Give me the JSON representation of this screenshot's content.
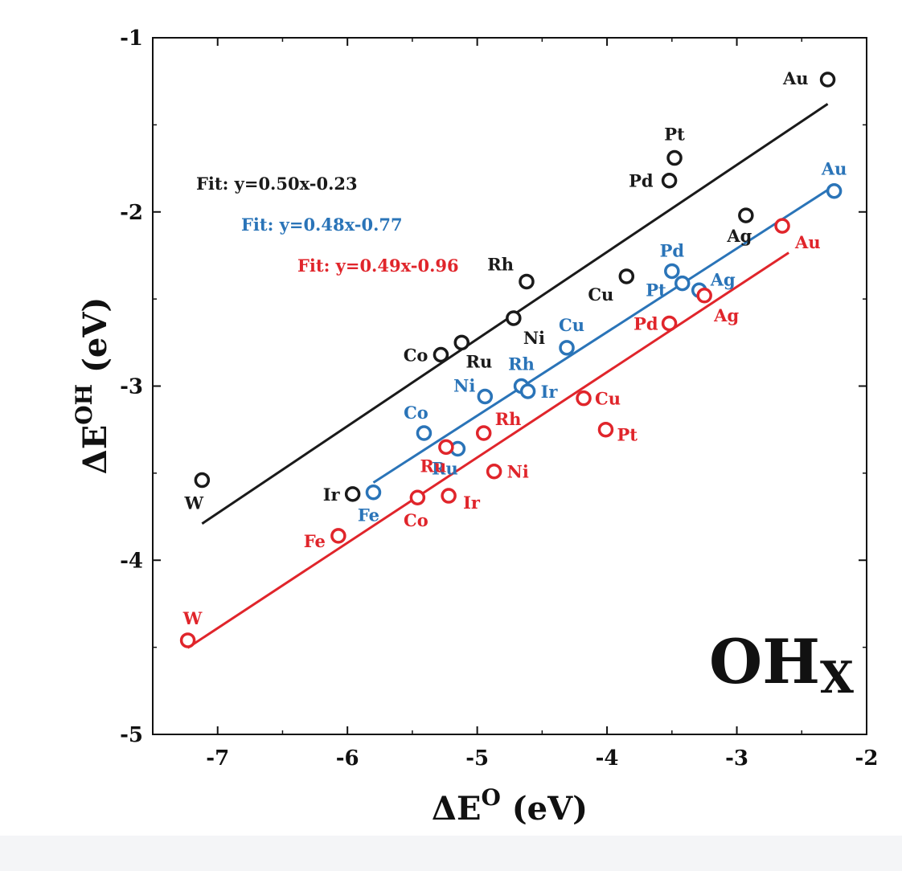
{
  "chart_data": {
    "type": "scatter",
    "xlabel": "ΔE",
    "xlabel_sup": "O",
    "xlabel_unit": " (eV)",
    "ylabel": "ΔE",
    "ylabel_sup": "OH",
    "ylabel_unit": " (eV)",
    "xlim": [
      -7.5,
      -2
    ],
    "ylim": [
      -5,
      -1
    ],
    "xticks": [
      -7,
      -6,
      -5,
      -4,
      -3,
      -2
    ],
    "yticks": [
      -1,
      -2,
      -3,
      -4,
      -5
    ],
    "grid": false,
    "annotation": {
      "main": "OH",
      "sub": "X"
    },
    "series": [
      {
        "color": "#1a1a1a",
        "fit_label": "Fit: y=0.50x-0.23",
        "fit": {
          "slope": 0.5,
          "intercept": -0.23,
          "x_range": [
            -7.12,
            -2.3
          ]
        },
        "points": [
          {
            "label": "Au",
            "x": -2.3,
            "y": -1.24
          },
          {
            "label": "Pt",
            "x": -3.48,
            "y": -1.69
          },
          {
            "label": "Pd",
            "x": -3.52,
            "y": -1.82
          },
          {
            "label": "Ag",
            "x": -2.93,
            "y": -2.02
          },
          {
            "label": "Cu",
            "x": -3.85,
            "y": -2.37
          },
          {
            "label": "Rh",
            "x": -4.62,
            "y": -2.4
          },
          {
            "label": "Ni",
            "x": -4.72,
            "y": -2.61
          },
          {
            "label": "Ru",
            "x": -5.12,
            "y": -2.75
          },
          {
            "label": "Co",
            "x": -5.28,
            "y": -2.82
          },
          {
            "label": "W",
            "x": -7.12,
            "y": -3.54
          },
          {
            "label": "Ir",
            "x": -5.96,
            "y": -3.62
          }
        ]
      },
      {
        "color": "#2a74b8",
        "fit_label": "Fit: y=0.48x-0.77",
        "fit": {
          "slope": 0.48,
          "intercept": -0.77,
          "x_range": [
            -5.8,
            -2.25
          ]
        },
        "points": [
          {
            "label": "Au",
            "x": -2.25,
            "y": -1.88
          },
          {
            "label": "Pd",
            "x": -3.5,
            "y": -2.34
          },
          {
            "label": "Pt",
            "x": -3.42,
            "y": -2.41
          },
          {
            "label": "Ag",
            "x": -3.29,
            "y": -2.45
          },
          {
            "label": "Cu",
            "x": -4.31,
            "y": -2.78
          },
          {
            "label": "Rh",
            "x": -4.66,
            "y": -3.0
          },
          {
            "label": "Ir",
            "x": -4.61,
            "y": -3.03
          },
          {
            "label": "Ni",
            "x": -4.94,
            "y": -3.06
          },
          {
            "label": "Co",
            "x": -5.41,
            "y": -3.27
          },
          {
            "label": "Ru",
            "x": -5.15,
            "y": -3.36
          },
          {
            "label": "Fe",
            "x": -5.8,
            "y": -3.61
          }
        ]
      },
      {
        "color": "#e0252b",
        "fit_label": "Fit: y=0.49x-0.96",
        "fit": {
          "slope": 0.49,
          "intercept": -0.96,
          "x_range": [
            -7.23,
            -2.6
          ]
        },
        "points": [
          {
            "label": "Au",
            "x": -2.65,
            "y": -2.08
          },
          {
            "label": "Ag",
            "x": -3.25,
            "y": -2.48
          },
          {
            "label": "Pd",
            "x": -3.52,
            "y": -2.64
          },
          {
            "label": "Cu",
            "x": -4.18,
            "y": -3.07
          },
          {
            "label": "Pt",
            "x": -4.01,
            "y": -3.25
          },
          {
            "label": "Rh",
            "x": -4.95,
            "y": -3.27
          },
          {
            "label": "Ru",
            "x": -5.24,
            "y": -3.35
          },
          {
            "label": "Ni",
            "x": -4.87,
            "y": -3.49
          },
          {
            "label": "Ir",
            "x": -5.22,
            "y": -3.63
          },
          {
            "label": "Co",
            "x": -5.46,
            "y": -3.64
          },
          {
            "label": "Fe",
            "x": -6.07,
            "y": -3.86
          },
          {
            "label": "W",
            "x": -7.23,
            "y": -4.46
          }
        ]
      }
    ]
  }
}
